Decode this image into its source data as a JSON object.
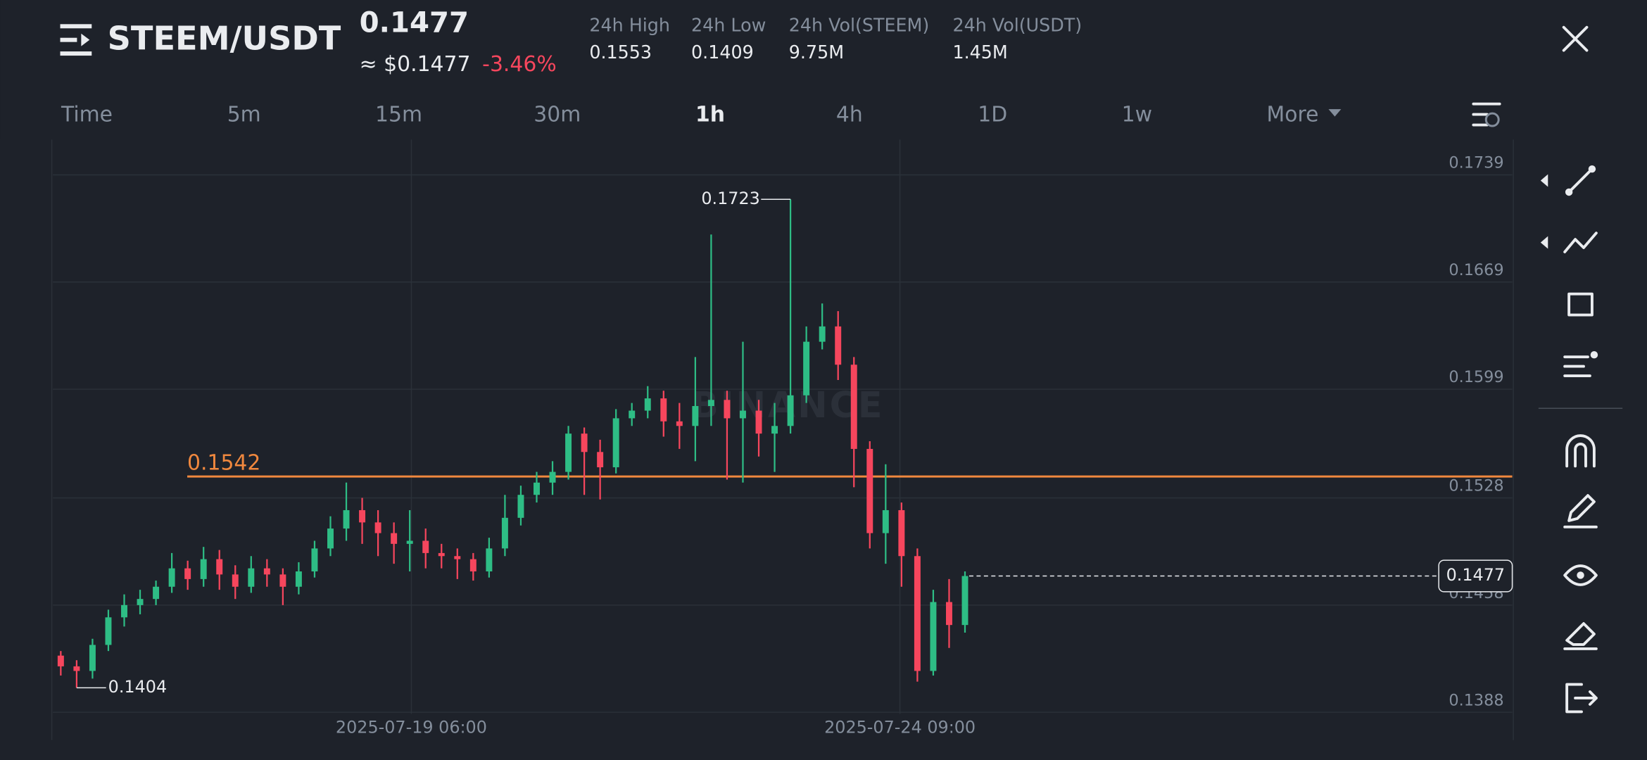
{
  "header": {
    "title": "STEEM/USDT",
    "price": "0.1477",
    "usd_price": "≈ $0.1477",
    "change": "-3.46%",
    "stats": [
      {
        "label": "24h High",
        "value": "0.1553"
      },
      {
        "label": "24h Low",
        "value": "0.1409"
      },
      {
        "label": "24h Vol(STEEM)",
        "value": "9.75M"
      },
      {
        "label": "24h Vol(USDT)",
        "value": "1.45M"
      }
    ]
  },
  "timeframes": [
    "Time",
    "5m",
    "15m",
    "30m",
    "1h",
    "4h",
    "1D",
    "1w",
    "More"
  ],
  "active_timeframe": 4,
  "chart_data": {
    "type": "candlestick",
    "watermark": "BINANCE",
    "up_color": "#2ebd85",
    "down_color": "#f6465d",
    "open": [
      0.1425,
      0.1418,
      0.1415,
      0.1432,
      0.145,
      0.1458,
      0.1462,
      0.147,
      0.1482,
      0.1475,
      0.1488,
      0.1478,
      0.147,
      0.1482,
      0.1478,
      0.147,
      0.148,
      0.1495,
      0.1508,
      0.152,
      0.1512,
      0.1505,
      0.1498,
      0.15,
      0.1492,
      0.149,
      0.1488,
      0.148,
      0.1495,
      0.1515,
      0.153,
      0.1538,
      0.1545,
      0.157,
      0.1558,
      0.1548,
      0.158,
      0.1585,
      0.1593,
      0.1578,
      0.1575,
      0.1588,
      0.1592,
      0.158,
      0.1585,
      0.157,
      0.1575,
      0.1595,
      0.163,
      0.164,
      0.1615,
      0.156,
      0.1505,
      0.152,
      0.149,
      0.1415,
      0.146,
      0.1445
    ],
    "high": [
      0.1428,
      0.1422,
      0.1436,
      0.1455,
      0.1465,
      0.1468,
      0.1474,
      0.1492,
      0.1487,
      0.1496,
      0.1494,
      0.1484,
      0.149,
      0.1488,
      0.1482,
      0.1486,
      0.15,
      0.1516,
      0.1538,
      0.1528,
      0.152,
      0.1512,
      0.152,
      0.1508,
      0.1498,
      0.1495,
      0.1492,
      0.1502,
      0.153,
      0.1536,
      0.1545,
      0.1552,
      0.1575,
      0.1574,
      0.1566,
      0.1586,
      0.159,
      0.1601,
      0.1598,
      0.159,
      0.162,
      0.17,
      0.1598,
      0.163,
      0.1592,
      0.159,
      0.1723,
      0.164,
      0.1655,
      0.165,
      0.162,
      0.1565,
      0.155,
      0.1525,
      0.1495,
      0.1468,
      0.1475,
      0.148
    ],
    "low": [
      0.1412,
      0.1404,
      0.141,
      0.1428,
      0.1444,
      0.1452,
      0.1458,
      0.1466,
      0.1468,
      0.147,
      0.1468,
      0.1462,
      0.1466,
      0.147,
      0.1458,
      0.1465,
      0.1476,
      0.149,
      0.15,
      0.1498,
      0.149,
      0.1485,
      0.148,
      0.1482,
      0.1482,
      0.1475,
      0.1474,
      0.1476,
      0.149,
      0.151,
      0.1525,
      0.153,
      0.154,
      0.153,
      0.1527,
      0.1544,
      0.1575,
      0.158,
      0.1568,
      0.156,
      0.1552,
      0.1575,
      0.154,
      0.1538,
      0.1555,
      0.1545,
      0.157,
      0.159,
      0.1625,
      0.1605,
      0.1535,
      0.1495,
      0.1485,
      0.147,
      0.1408,
      0.1412,
      0.143,
      0.144
    ],
    "close": [
      0.1418,
      0.1415,
      0.1432,
      0.145,
      0.1458,
      0.1462,
      0.147,
      0.1482,
      0.1475,
      0.1488,
      0.1478,
      0.147,
      0.1482,
      0.1478,
      0.147,
      0.148,
      0.1495,
      0.1508,
      0.152,
      0.1512,
      0.1505,
      0.1498,
      0.15,
      0.1492,
      0.149,
      0.1488,
      0.148,
      0.1495,
      0.1515,
      0.153,
      0.1538,
      0.1545,
      0.157,
      0.1558,
      0.1548,
      0.158,
      0.1585,
      0.1593,
      0.1578,
      0.1575,
      0.1588,
      0.1592,
      0.158,
      0.1585,
      0.157,
      0.1575,
      0.1595,
      0.163,
      0.164,
      0.1615,
      0.156,
      0.1505,
      0.152,
      0.149,
      0.1415,
      0.146,
      0.1445,
      0.1477
    ],
    "xlim": [
      0,
      92
    ],
    "xticks": [
      {
        "value": 22.6,
        "label": "2025-07-19 06:00"
      },
      {
        "value": 53.4,
        "label": "2025-07-24 09:00"
      }
    ],
    "ylim": [
      0.1387,
      0.1762
    ],
    "yticks": [
      0.1388,
      0.1458,
      0.1528,
      0.1599,
      0.1669,
      0.1739
    ],
    "grid": true,
    "hline": {
      "value": 0.1542,
      "color": "#f0883e"
    }
  }
}
